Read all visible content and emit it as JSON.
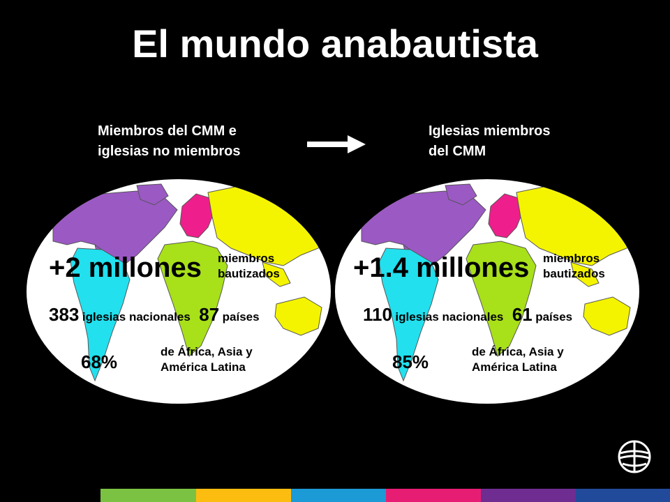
{
  "title": "El mundo anabautista",
  "left": {
    "heading_line1": "Miembros del CMM e",
    "heading_line2": "iglesias no miembros",
    "members_value": "+2 millones",
    "members_label_line1": "miembros",
    "members_label_line2": "bautizados",
    "churches_value": "383",
    "churches_label": "iglesias nacionales",
    "countries_value": "87",
    "countries_label": "países",
    "percent_value": "68%",
    "percent_label_line1": "de África, Asia y",
    "percent_label_line2": "América Latina"
  },
  "right": {
    "heading_line1": "Iglesias miembros",
    "heading_line2": "del CMM",
    "members_value": "+1.4 millones",
    "members_label_line1": "miembros",
    "members_label_line2": "bautizados",
    "churches_value": "110",
    "churches_label": "iglesias nacionales",
    "countries_value": "61",
    "countries_label": "países",
    "percent_value": "85%",
    "percent_label_line1": "de África, Asia y",
    "percent_label_line2": "América Latina"
  },
  "colors": {
    "background": "#000000",
    "north_america": "#9b59c4",
    "south_america": "#22e0ee",
    "europe": "#ee1f8c",
    "africa": "#a8e01a",
    "asia_oceania": "#f4f400",
    "stripes": [
      "#000000",
      "#7cc242",
      "#fdbd10",
      "#1b9ad6",
      "#e71d73",
      "#6f2c91",
      "#214a9b"
    ]
  },
  "icons": {
    "arrow": "right-arrow-icon",
    "logo": "globe-cross-logo-icon"
  }
}
